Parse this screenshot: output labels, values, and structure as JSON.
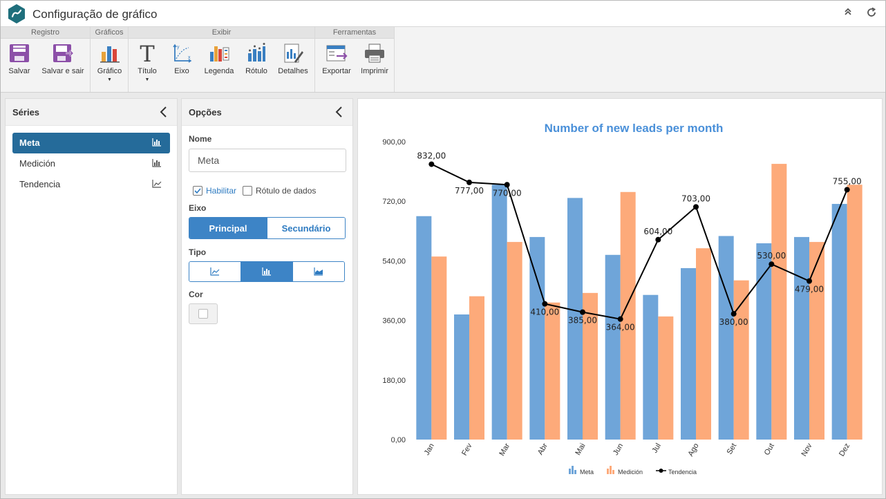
{
  "app": {
    "title": "Configuração de gráfico"
  },
  "ribbon": {
    "groups": {
      "registro": "Registro",
      "graficos": "Gráficos",
      "exibir": "Exibir",
      "ferramentas": "Ferramentas"
    },
    "buttons": {
      "salvar": "Salvar",
      "salvar_sair": "Salvar e sair",
      "grafico": "Gráfico",
      "titulo": "Título",
      "eixo": "Eixo",
      "legenda": "Legenda",
      "rotulo": "Rótulo",
      "detalhes": "Detalhes",
      "exportar": "Exportar",
      "imprimir": "Imprimir"
    }
  },
  "series_panel": {
    "title": "Séries",
    "items": [
      {
        "label": "Meta",
        "icon": "bar-chart-icon"
      },
      {
        "label": "Medición",
        "icon": "bar-chart-icon"
      },
      {
        "label": "Tendencia",
        "icon": "line-chart-icon"
      }
    ]
  },
  "options_panel": {
    "title": "Opções",
    "nome_label": "Nome",
    "nome_value": "Meta",
    "habilitar": "Habilitar",
    "habilitar_checked": true,
    "rotulo_dados": "Rótulo de dados",
    "rotulo_dados_checked": false,
    "eixo_label": "Eixo",
    "eixo_options": [
      "Principal",
      "Secundário"
    ],
    "eixo_selected": "Principal",
    "tipo_label": "Tipo",
    "tipo_options": [
      "line-chart-icon",
      "bar-chart-icon",
      "area-chart-icon"
    ],
    "tipo_selected": "bar-chart-icon",
    "cor_label": "Cor",
    "cor_value": "#ffffff"
  },
  "chart_data": {
    "type": "bar",
    "title": "Number of new leads per month",
    "categories": [
      "Jan",
      "Fev",
      "Mar",
      "Abr",
      "Mai",
      "Jun",
      "Jul",
      "Ago",
      "Set",
      "Out",
      "Nov",
      "Dez"
    ],
    "ylim": [
      0,
      900
    ],
    "yticks": [
      "0,00",
      "180,00",
      "360,00",
      "540,00",
      "720,00",
      "900,00"
    ],
    "series": [
      {
        "name": "Meta",
        "type": "bar",
        "color": "#6fa5d9",
        "values": [
          675,
          378,
          770,
          612,
          730,
          558,
          437,
          518,
          615,
          593,
          612,
          712
        ]
      },
      {
        "name": "Medición",
        "type": "bar",
        "color": "#fdaa7a",
        "values": [
          553,
          433,
          597,
          414,
          443,
          748,
          372,
          578,
          481,
          833,
          597,
          770
        ]
      },
      {
        "name": "Tendencia",
        "type": "line",
        "color": "#000000",
        "values": [
          832,
          777,
          770,
          410,
          385,
          364,
          604,
          703,
          380,
          530,
          479,
          755
        ],
        "labels": [
          "832,00",
          "777,00",
          "770,00",
          "410,00",
          "385,00",
          "364,00",
          "604,00",
          "703,00",
          "380,00",
          "530,00",
          "479,00",
          "755,00"
        ]
      }
    ],
    "legend": "bottom",
    "grid": false
  }
}
